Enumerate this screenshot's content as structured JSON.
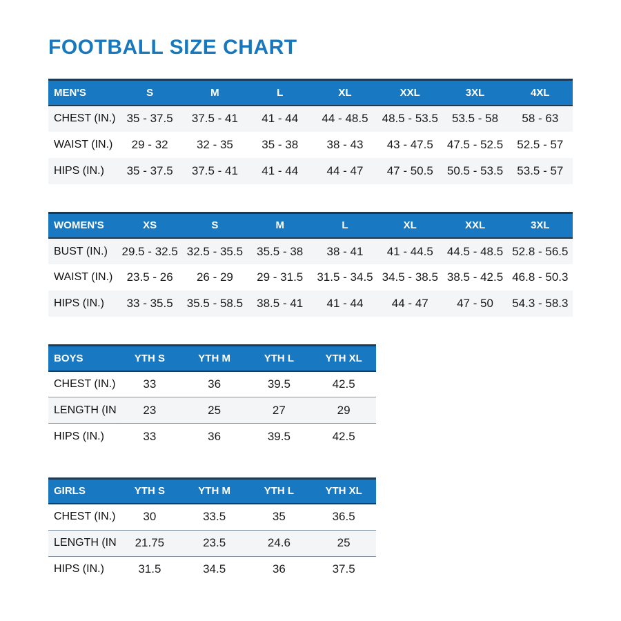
{
  "page": {
    "title": "FOOTBALL SIZE CHART"
  },
  "colors": {
    "title_blue": "#1878be",
    "header_blue": "#1878c1",
    "border_navy": "#1d3a55",
    "row_shade": "#f4f5f7",
    "text_dark": "#1a1a1a"
  },
  "tables": [
    {
      "id": "mens",
      "header": [
        "MEN'S",
        "S",
        "M",
        "L",
        "XL",
        "XXL",
        "3XL",
        "4XL"
      ],
      "rows": [
        [
          "CHEST (IN.)",
          "35 - 37.5",
          "37.5 - 41",
          "41 - 44",
          "44 - 48.5",
          "48.5 - 53.5",
          "53.5 - 58",
          "58 - 63"
        ],
        [
          "WAIST (IN.)",
          "29 - 32",
          "32 - 35",
          "35 - 38",
          "38 - 43",
          "43 - 47.5",
          "47.5 - 52.5",
          "52.5 - 57"
        ],
        [
          "HIPS (IN.)",
          "35 - 37.5",
          "37.5 - 41",
          "41 - 44",
          "44 - 47",
          "47 - 50.5",
          "50.5 - 53.5",
          "53.5 - 57"
        ]
      ]
    },
    {
      "id": "womens",
      "header": [
        "WOMEN'S",
        "XS",
        "S",
        "M",
        "L",
        "XL",
        "XXL",
        "3XL"
      ],
      "rows": [
        [
          "BUST (IN.)",
          "29.5 - 32.5",
          "32.5 - 35.5",
          "35.5 - 38",
          "38 - 41",
          "41 - 44.5",
          "44.5 - 48.5",
          "52.8 - 56.5"
        ],
        [
          "WAIST (IN.)",
          "23.5 - 26",
          "26 - 29",
          "29 - 31.5",
          "31.5 - 34.5",
          "34.5 - 38.5",
          "38.5 - 42.5",
          "46.8 - 50.3"
        ],
        [
          "HIPS (IN.)",
          "33 - 35.5",
          "35.5 - 58.5",
          "38.5 - 41",
          "41 - 44",
          "44 - 47",
          "47 - 50",
          "54.3 - 58.3"
        ]
      ]
    },
    {
      "id": "boys",
      "header": [
        "BOYS",
        "YTH S",
        "YTH M",
        "YTH L",
        "YTH XL"
      ],
      "rows": [
        [
          "CHEST (IN.)",
          "33",
          "36",
          "39.5",
          "42.5"
        ],
        [
          "LENGTH (IN.)",
          "23",
          "25",
          "27",
          "29"
        ],
        [
          "HIPS (IN.)",
          "33",
          "36",
          "39.5",
          "42.5"
        ]
      ]
    },
    {
      "id": "girls",
      "header": [
        "GIRLS",
        "YTH S",
        "YTH M",
        "YTH L",
        "YTH XL"
      ],
      "rows": [
        [
          "CHEST (IN.)",
          "30",
          "33.5",
          "35",
          "36.5"
        ],
        [
          "LENGTH (IN.)",
          "21.75",
          "23.5",
          "24.6",
          "25"
        ],
        [
          "HIPS (IN.)",
          "31.5",
          "34.5",
          "36",
          "37.5"
        ]
      ]
    }
  ]
}
